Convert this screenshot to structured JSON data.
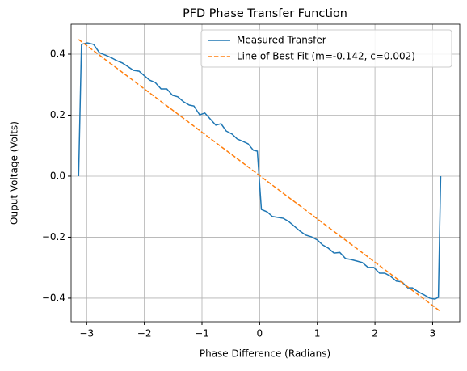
{
  "chart_data": {
    "type": "line",
    "title": "PFD Phase Transfer Function",
    "xlabel": "Phase Difference (Radians)",
    "ylabel": "Ouput Voltage (Volts)",
    "xlim": [
      -3.27,
      3.47
    ],
    "ylim": [
      -0.477,
      0.498
    ],
    "xticks": [
      {
        "value": -3,
        "label": "−3"
      },
      {
        "value": -2,
        "label": "−2"
      },
      {
        "value": -1,
        "label": "−1"
      },
      0,
      1,
      2,
      3
    ],
    "yticks": [
      {
        "value": -0.4,
        "label": "−0.4"
      },
      {
        "value": -0.2,
        "label": "−0.2"
      },
      {
        "value": 0,
        "label": "0.0"
      },
      0.2,
      0.4
    ],
    "grid": true,
    "legend": "upper right",
    "series": [
      {
        "name": "Measured Transfer",
        "color": "#1f77b4",
        "style": "solid",
        "x": [
          -3.14,
          -3.09,
          -2.99,
          -2.88,
          -2.78,
          -2.68,
          -2.58,
          -2.48,
          -2.38,
          -2.29,
          -2.19,
          -2.09,
          -2.01,
          -1.91,
          -1.81,
          -1.71,
          -1.61,
          -1.51,
          -1.42,
          -1.32,
          -1.22,
          -1.14,
          -1.04,
          -0.95,
          -0.86,
          -0.76,
          -0.67,
          -0.58,
          -0.48,
          -0.39,
          -0.29,
          -0.2,
          -0.11,
          -0.04,
          0.03,
          0.13,
          0.22,
          0.31,
          0.41,
          0.5,
          0.6,
          0.7,
          0.8,
          0.9,
          1.0,
          1.09,
          1.19,
          1.29,
          1.39,
          1.49,
          1.58,
          1.68,
          1.78,
          1.88,
          1.98,
          2.08,
          2.17,
          2.27,
          2.37,
          2.47,
          2.57,
          2.65,
          2.75,
          2.85,
          2.95,
          3.04,
          3.1,
          3.14
        ],
        "values": [
          0,
          0.432,
          0.437,
          0.432,
          0.405,
          0.397,
          0.389,
          0.379,
          0.371,
          0.36,
          0.347,
          0.344,
          0.331,
          0.315,
          0.307,
          0.286,
          0.286,
          0.265,
          0.26,
          0.244,
          0.233,
          0.23,
          0.201,
          0.207,
          0.188,
          0.167,
          0.172,
          0.148,
          0.138,
          0.122,
          0.114,
          0.106,
          0.085,
          0.082,
          -0.109,
          -0.117,
          -0.132,
          -0.135,
          -0.138,
          -0.148,
          -0.164,
          -0.18,
          -0.193,
          -0.199,
          -0.209,
          -0.225,
          -0.236,
          -0.252,
          -0.25,
          -0.27,
          -0.273,
          -0.278,
          -0.283,
          -0.299,
          -0.299,
          -0.318,
          -0.318,
          -0.328,
          -0.344,
          -0.347,
          -0.366,
          -0.366,
          -0.379,
          -0.389,
          -0.4,
          -0.403,
          -0.397,
          0
        ]
      },
      {
        "name": "Line of Best Fit (m=-0.142, c=0.002)",
        "color": "#ff7f0e",
        "style": "dashed",
        "x": [
          -3.14,
          3.14
        ],
        "values": [
          0.448,
          -0.444
        ]
      }
    ]
  }
}
